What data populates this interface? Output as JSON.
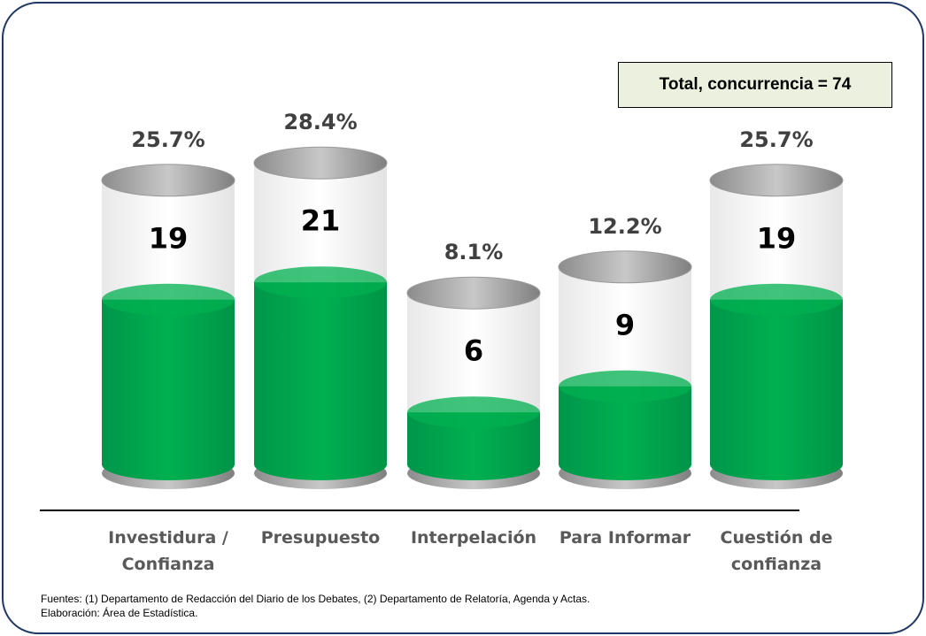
{
  "chart_data": {
    "type": "cylinder",
    "categories": [
      "Investidura / Confianza",
      "Presupuesto",
      "Interpelación",
      "Para Informar",
      "Cuestión de confianza"
    ],
    "values": [
      19,
      21,
      6,
      9,
      19
    ],
    "shares": [
      25.7,
      28.4,
      8.1,
      12.2,
      25.7
    ],
    "share_labels": [
      "25.7%",
      "28.4%",
      "8.1%",
      "12.2%",
      "25.7%"
    ],
    "color": "#00b050",
    "annotation": "Total, concurrencia = 74",
    "footnotes": [
      "Fuentes: (1) Departamento de Redacción del Diario de los Debates, (2) Departamento de Relatoría, Agenda y Actas.",
      "Elaboración: Área de Estadística."
    ]
  }
}
